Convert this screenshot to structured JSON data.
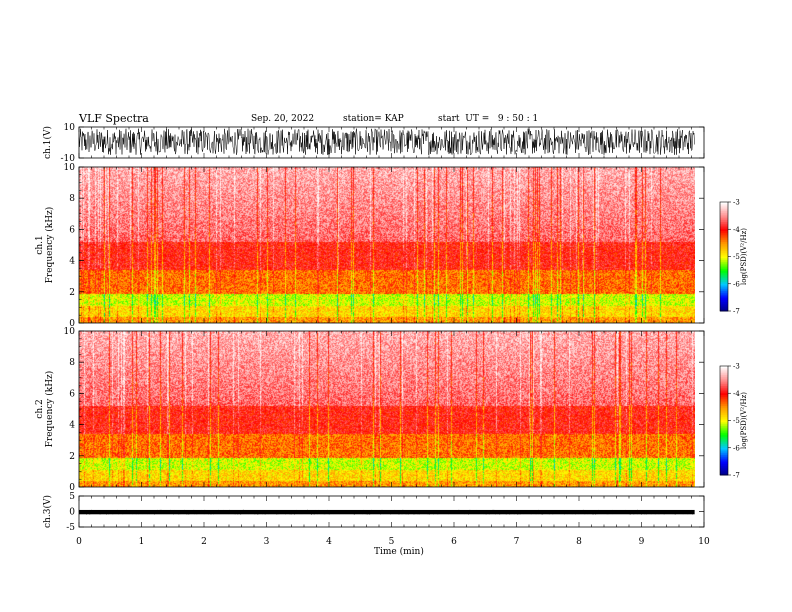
{
  "header": {
    "title": "VLF Spectra",
    "date": "Sep. 20, 2022",
    "station": "station= KAP",
    "start": "start  UT =   9 : 50 : 1"
  },
  "chart_data": [
    {
      "type": "line",
      "name": "waveform-ch1",
      "ylabel": "ch.1(V)",
      "ylim": [
        -10,
        10
      ],
      "yticks": [
        "10",
        "-10"
      ],
      "xlim": [
        0,
        10
      ],
      "data_end_min": 9.85,
      "color": "#000000",
      "description_values": {
        "typical_min_V": -8,
        "typical_max_V": 9
      }
    },
    {
      "type": "heatmap",
      "name": "spectrogram-ch1",
      "ylabel": "ch.1\nFrequency (kHz)",
      "ylim": [
        0,
        10
      ],
      "yticks": [
        "0",
        "2",
        "4",
        "6",
        "8",
        "10"
      ],
      "xlim": [
        0,
        10
      ],
      "data_end_min": 9.85,
      "colorbar": {
        "label": "log(PSD)(V²/Hz)",
        "range": [
          -7,
          -3
        ],
        "ticks": [
          "-3",
          "-4",
          "-5",
          "-6",
          "-7"
        ],
        "colors": [
          "#ffffff",
          "#ff9090",
          "#ff0000",
          "#ff9a00",
          "#ffff00",
          "#00ff00",
          "#00c8ff",
          "#0000ff",
          "#000080"
        ]
      }
    },
    {
      "type": "heatmap",
      "name": "spectrogram-ch2",
      "ylabel": "ch.2\nFrequency (kHz)",
      "ylim": [
        0,
        10
      ],
      "yticks": [
        "0",
        "2",
        "4",
        "6",
        "8",
        "10"
      ],
      "xlim": [
        0,
        10
      ],
      "data_end_min": 9.85,
      "colorbar": {
        "label": "log(PSD)(V²/Hz)",
        "range": [
          -7,
          -3
        ],
        "ticks": [
          "-3",
          "-4",
          "-5",
          "-6",
          "-7"
        ],
        "colors": [
          "#ffffff",
          "#ff9090",
          "#ff0000",
          "#ff9a00",
          "#ffff00",
          "#00ff00",
          "#00c8ff",
          "#0000ff",
          "#000080"
        ]
      }
    },
    {
      "type": "line",
      "name": "waveform-ch3",
      "ylabel": "ch.3(V)",
      "ylim": [
        -5,
        5
      ],
      "yticks": [
        "5",
        "0",
        "-5"
      ],
      "xlim": [
        0,
        10
      ],
      "data_end_min": 9.85,
      "color": "#000000",
      "description_values": {
        "typical_min_V": -0.8,
        "typical_max_V": 0.3
      }
    }
  ],
  "xaxis": {
    "label": "Time (min)",
    "ticks": [
      "0",
      "1",
      "2",
      "3",
      "4",
      "5",
      "6",
      "7",
      "8",
      "9",
      "10"
    ],
    "range": [
      0,
      10
    ]
  }
}
